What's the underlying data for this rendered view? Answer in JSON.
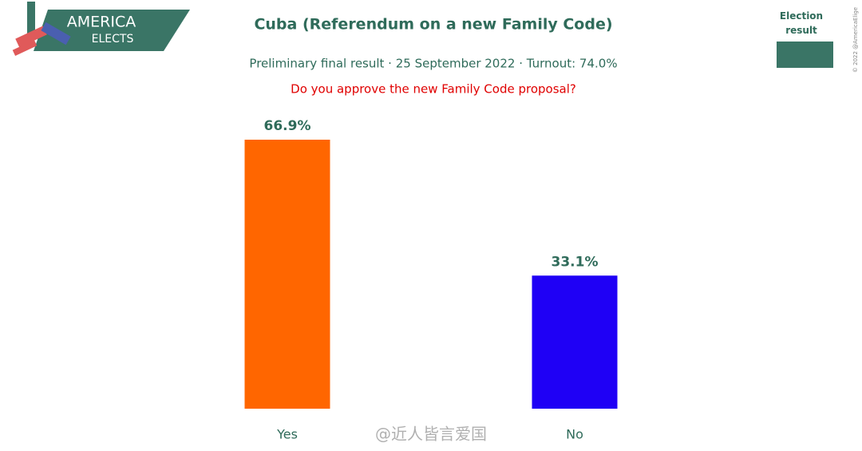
{
  "header": {
    "logo_top": "AMERICA",
    "logo_bottom": "ELECTS",
    "copyright": "© 2022 @AmericaElige"
  },
  "chart_data": {
    "type": "bar",
    "title": "Cuba (Referendum on a new Family Code)",
    "subtitle": "Preliminary final result · 25 September 2022 · Turnout: 74.0%",
    "question": "Do you approve the new Family Code proposal?",
    "legend_title": "Election result",
    "legend_color": "#3a7566",
    "categories": [
      "Yes",
      "No"
    ],
    "values": [
      66.9,
      33.1
    ],
    "value_labels": [
      "66.9%",
      "33.1%"
    ],
    "colors": [
      "#ff6600",
      "#1f00f5"
    ]
  },
  "watermark": "@近人皆言爱国"
}
